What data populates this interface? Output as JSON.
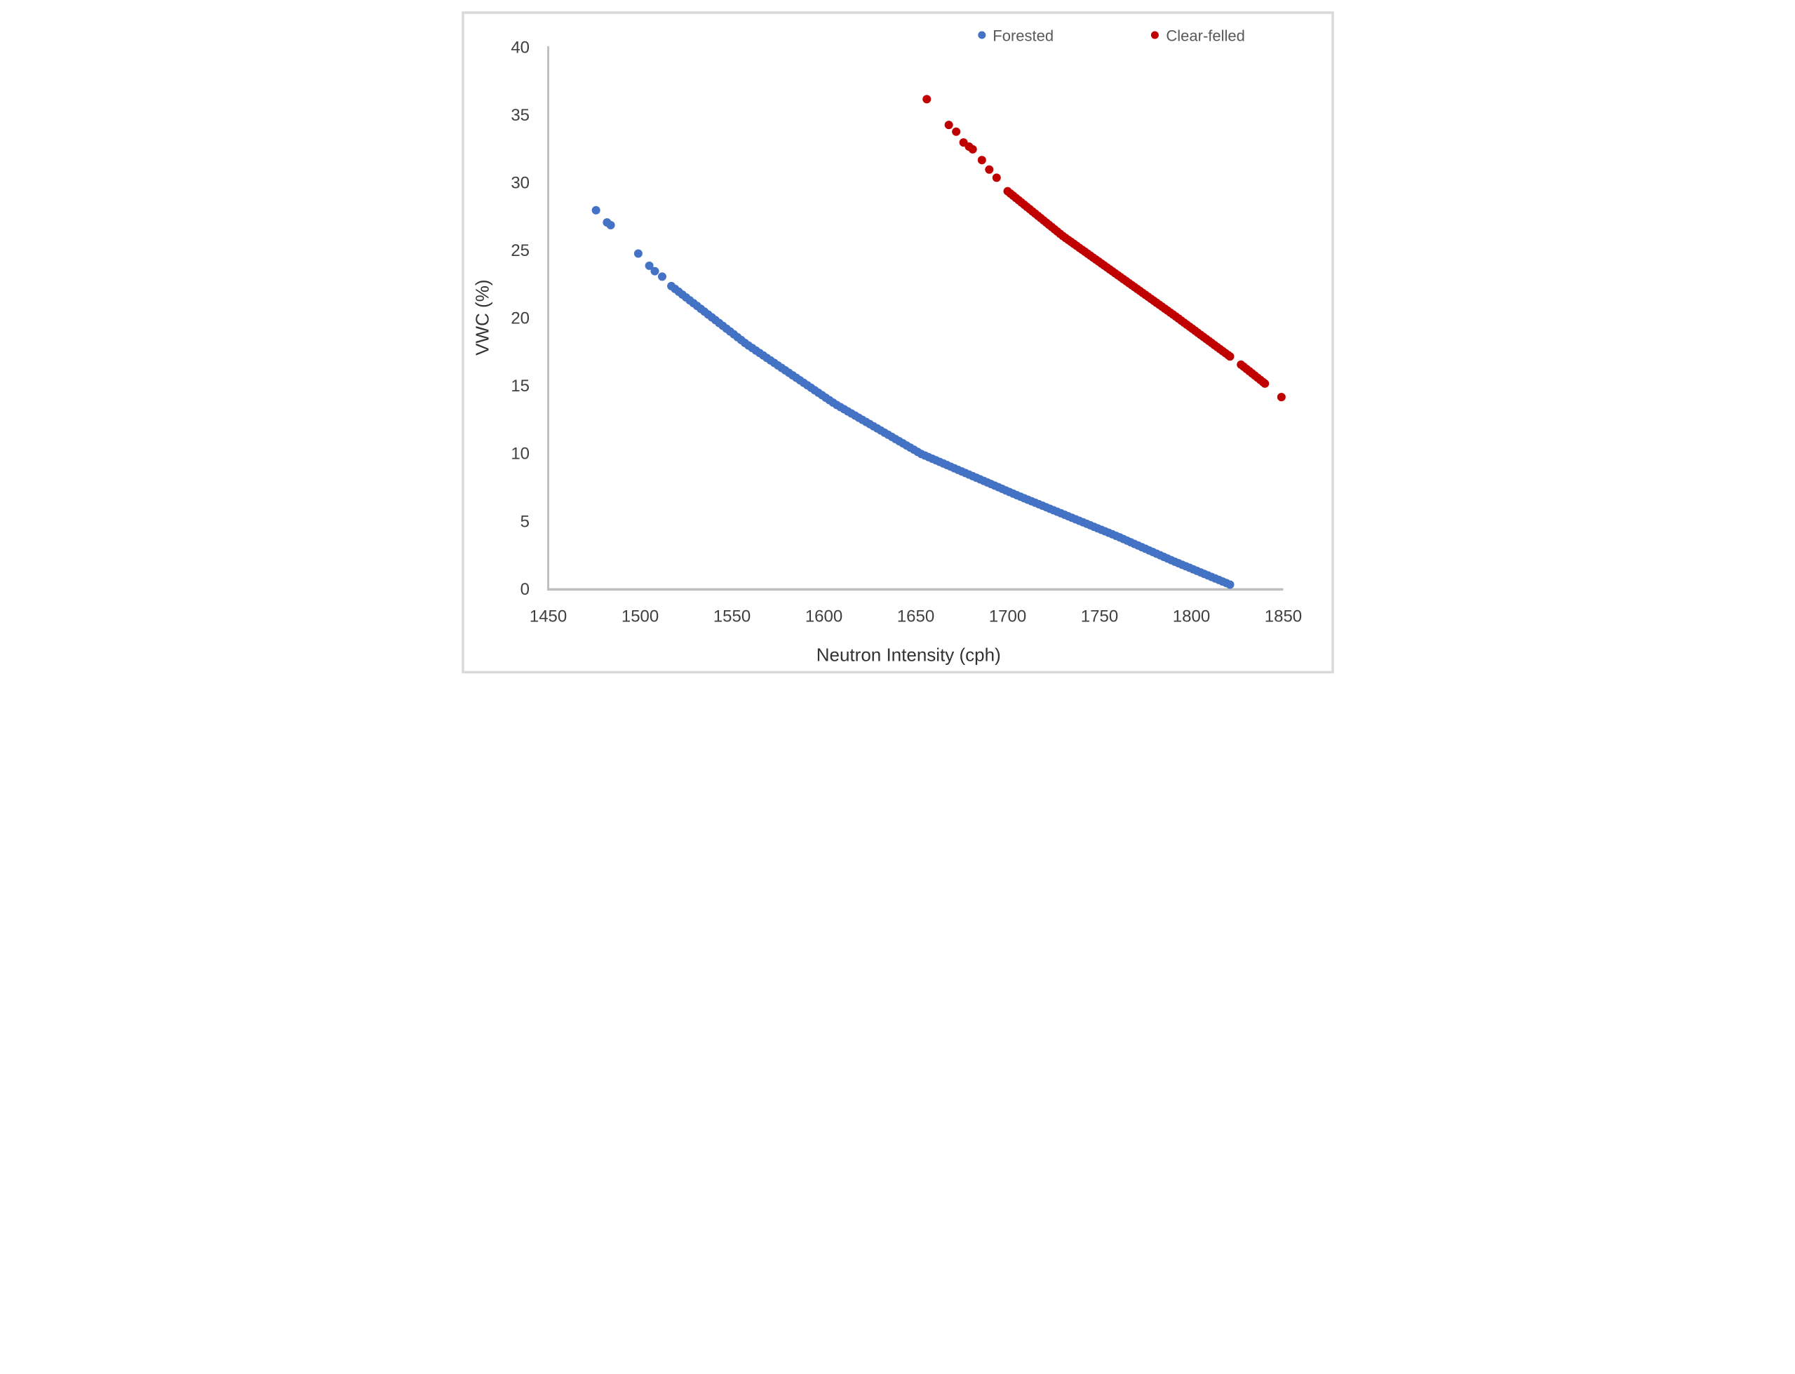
{
  "chart_data": {
    "type": "scatter",
    "title": "",
    "xlabel": "Neutron Intensity (cph)",
    "ylabel": "VWC (%)",
    "xlim": [
      1450,
      1850
    ],
    "ylim": [
      0,
      40
    ],
    "x_ticks": [
      1450,
      1500,
      1550,
      1600,
      1650,
      1700,
      1750,
      1800,
      1850
    ],
    "y_ticks": [
      0,
      5,
      10,
      15,
      20,
      25,
      30,
      35,
      40
    ],
    "grid": false,
    "legend_position": "top",
    "marker_radius_px": 12,
    "legend_marker_radius_px": 11,
    "colors": {
      "forested": "#4472C4",
      "clear_felled": "#C00000",
      "axis_line": "#BFBFBF",
      "tick_text": "#404040",
      "title_text": "#333333",
      "legend_text": "#595959",
      "figure_border": "#D9D9D9",
      "background": "#FFFFFF"
    },
    "series": [
      {
        "name": "Forested",
        "color": "#4472C4",
        "sparse_points": [
          [
            1476,
            28.0
          ],
          [
            1482,
            27.1
          ],
          [
            1484,
            26.9
          ],
          [
            1499,
            24.8
          ],
          [
            1505,
            23.9
          ],
          [
            1508,
            23.5
          ],
          [
            1512,
            23.1
          ]
        ],
        "band_segments": [
          {
            "step": 2,
            "anchors": [
              [
                1517,
                22.4
              ],
              [
                1558,
                18.1
              ],
              [
                1606,
                13.7
              ],
              [
                1653,
                10.0
              ],
              [
                1706,
                6.9
              ],
              [
                1760,
                3.9
              ],
              [
                1790,
                2.1
              ],
              [
                1822,
                0.3
              ]
            ]
          }
        ]
      },
      {
        "name": "Clear-felled",
        "color": "#C00000",
        "sparse_points": [
          [
            1656,
            36.2
          ],
          [
            1668,
            34.3
          ],
          [
            1672,
            33.8
          ],
          [
            1676,
            33.0
          ],
          [
            1679,
            32.7
          ],
          [
            1681,
            32.5
          ],
          [
            1686,
            31.7
          ],
          [
            1690,
            31.0
          ],
          [
            1694,
            30.4
          ],
          [
            1849,
            14.2
          ]
        ],
        "band_segments": [
          {
            "step": 1.5,
            "anchors": [
              [
                1700,
                29.4
              ],
              [
                1730,
                26.1
              ],
              [
                1760,
                23.2
              ],
              [
                1790,
                20.3
              ],
              [
                1815,
                17.8
              ],
              [
                1821,
                17.2
              ]
            ]
          },
          {
            "step": 1.5,
            "anchors": [
              [
                1827,
                16.6
              ],
              [
                1840,
                15.2
              ]
            ]
          }
        ]
      }
    ]
  }
}
